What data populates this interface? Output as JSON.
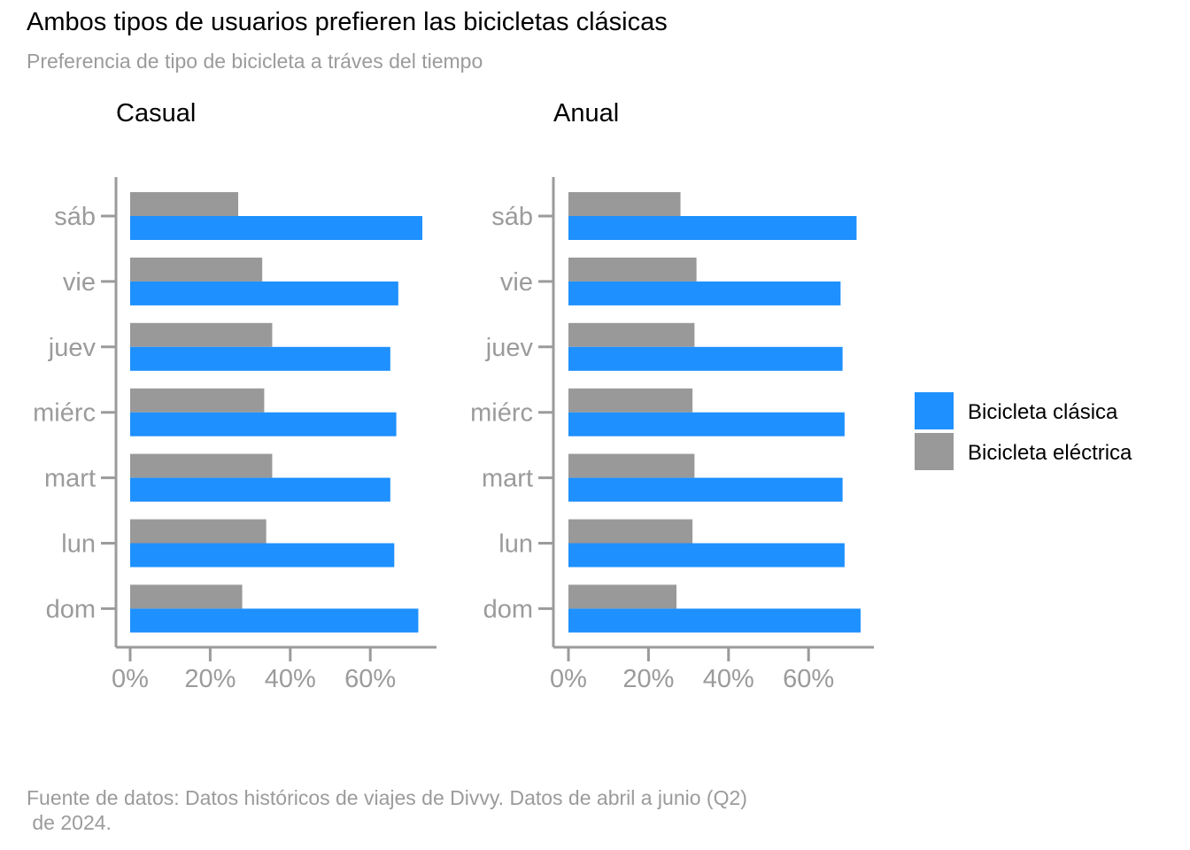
{
  "title": "Ambos tipos de usuarios prefieren las bicicletas clásicas",
  "subtitle": "Preferencia de tipo de bicicleta a tráves del tiempo",
  "caption": "Fuente de datos: Datos históricos de viajes de Divvy. Datos de abril a junio (Q2)\n de 2024.",
  "colors": {
    "clasica": "#1e90ff",
    "electrica": "#999999",
    "axis": "#9b9b9b"
  },
  "chart_data": {
    "type": "bar",
    "orientation": "horizontal",
    "categories": [
      "dom",
      "lun",
      "mart",
      "miérc",
      "juev",
      "vie",
      "sáb"
    ],
    "xlim": [
      0,
      0.75
    ],
    "x_ticks": [
      0,
      0.2,
      0.4,
      0.6
    ],
    "x_tick_labels": [
      "0%",
      "20%",
      "40%",
      "60%"
    ],
    "legend": {
      "position": "right",
      "entries": [
        "Bicicleta clásica",
        "Bicicleta eléctrica"
      ]
    },
    "panels": [
      {
        "title": "Casual",
        "series": [
          {
            "name": "Bicicleta clásica",
            "values": [
              0.72,
              0.66,
              0.65,
              0.665,
              0.65,
              0.67,
              0.73
            ]
          },
          {
            "name": "Bicicleta eléctrica",
            "values": [
              0.28,
              0.34,
              0.355,
              0.335,
              0.355,
              0.33,
              0.27
            ]
          }
        ]
      },
      {
        "title": "Anual",
        "series": [
          {
            "name": "Bicicleta clásica",
            "values": [
              0.73,
              0.69,
              0.685,
              0.69,
              0.685,
              0.68,
              0.72
            ]
          },
          {
            "name": "Bicicleta eléctrica",
            "values": [
              0.27,
              0.31,
              0.315,
              0.31,
              0.315,
              0.32,
              0.28
            ]
          }
        ]
      }
    ]
  }
}
